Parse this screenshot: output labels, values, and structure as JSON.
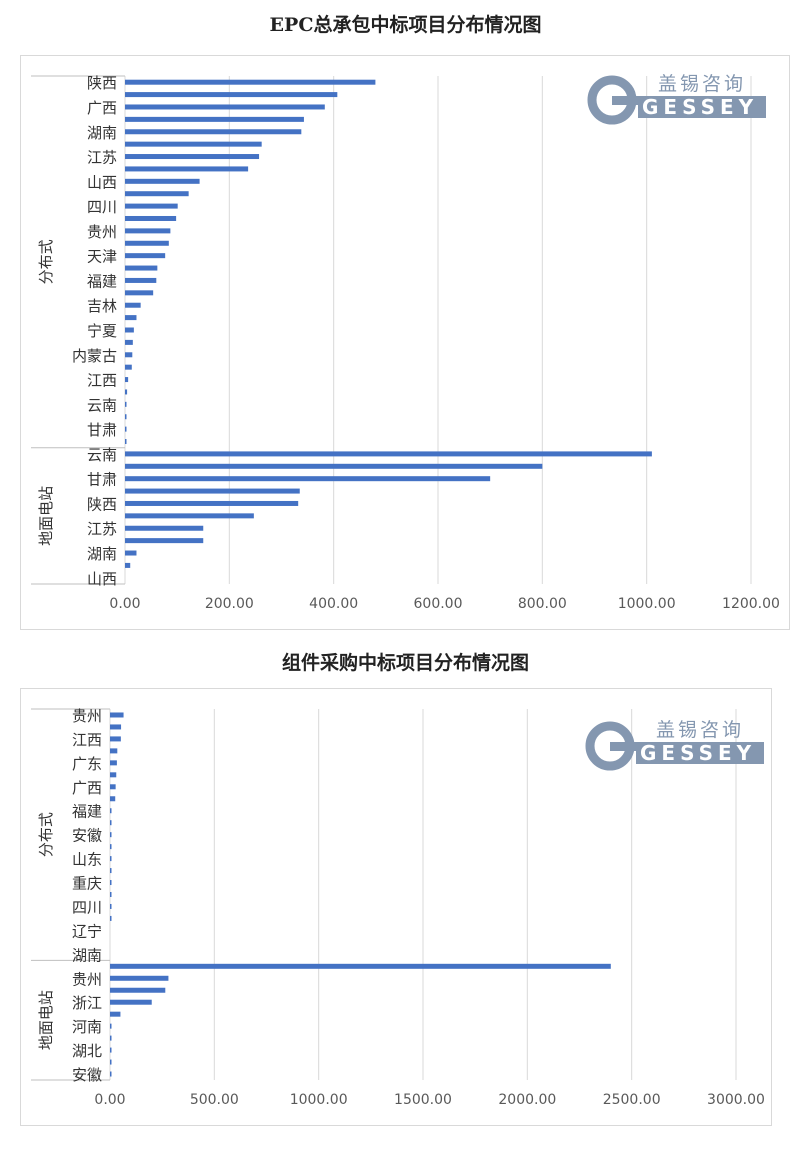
{
  "chart_data": [
    {
      "type": "bar",
      "orientation": "horizontal",
      "title": "EPC总承包中标项目分布情况图",
      "groups": [
        {
          "name": "分布式",
          "labels": [
            "陕西",
            "",
            "广西",
            "",
            "湖南",
            "",
            "江苏",
            "",
            "山西",
            "",
            "四川",
            "",
            "贵州",
            "",
            "天津",
            "",
            "福建",
            "",
            "吉林",
            "",
            "宁夏",
            "",
            "内蒙古",
            "",
            "江西",
            "",
            "云南",
            "",
            "甘肃",
            ""
          ],
          "values": [
            480,
            407,
            383,
            343,
            338,
            262,
            257,
            236,
            143,
            122,
            101,
            98,
            87,
            84,
            77,
            62,
            60,
            54,
            30,
            22,
            17,
            15,
            14,
            13,
            6,
            4,
            2,
            2,
            1,
            1
          ]
        },
        {
          "name": "地面电站",
          "labels": [
            "云南",
            "",
            "甘肃",
            "",
            "陕西",
            "",
            "江苏",
            "",
            "湖南",
            "",
            "山西"
          ],
          "values": [
            1010,
            800,
            700,
            335,
            332,
            247,
            150,
            150,
            22,
            10,
            0
          ]
        }
      ],
      "xlim": [
        0,
        1200
      ],
      "xticks": [
        "0.00",
        "200.00",
        "400.00",
        "600.00",
        "800.00",
        "1000.00",
        "1200.00"
      ],
      "grid": true,
      "bar_color": "#4472c4",
      "watermark": {
        "cn": "盖锡咨询",
        "en": "GESSEY"
      }
    },
    {
      "type": "bar",
      "orientation": "horizontal",
      "title": "组件采购中标项目分布情况图",
      "groups": [
        {
          "name": "分布式",
          "labels": [
            "贵州",
            "",
            "江西",
            "",
            "广东",
            "",
            "广西",
            "",
            "福建",
            "",
            "安徽",
            "",
            "山东",
            "",
            "重庆",
            "",
            "四川",
            "",
            "辽宁",
            "",
            "湖南"
          ],
          "values": [
            65,
            53,
            52,
            35,
            33,
            30,
            27,
            25,
            6,
            5,
            4,
            3,
            3,
            2,
            1,
            1,
            1,
            1,
            0,
            0,
            0
          ]
        },
        {
          "name": "地面电站",
          "labels": [
            "",
            "贵州",
            "",
            "浙江",
            "",
            "河南",
            "",
            "湖北",
            "",
            "安徽"
          ],
          "values": [
            2400,
            280,
            265,
            200,
            50,
            5,
            2,
            1,
            1,
            1
          ]
        }
      ],
      "xlim": [
        0,
        3000
      ],
      "xticks": [
        "0.00",
        "500.00",
        "1000.00",
        "1500.00",
        "2000.00",
        "2500.00",
        "3000.00"
      ],
      "grid": true,
      "bar_color": "#4472c4",
      "watermark": {
        "cn": "盖锡咨询",
        "en": "GESSEY"
      }
    }
  ]
}
